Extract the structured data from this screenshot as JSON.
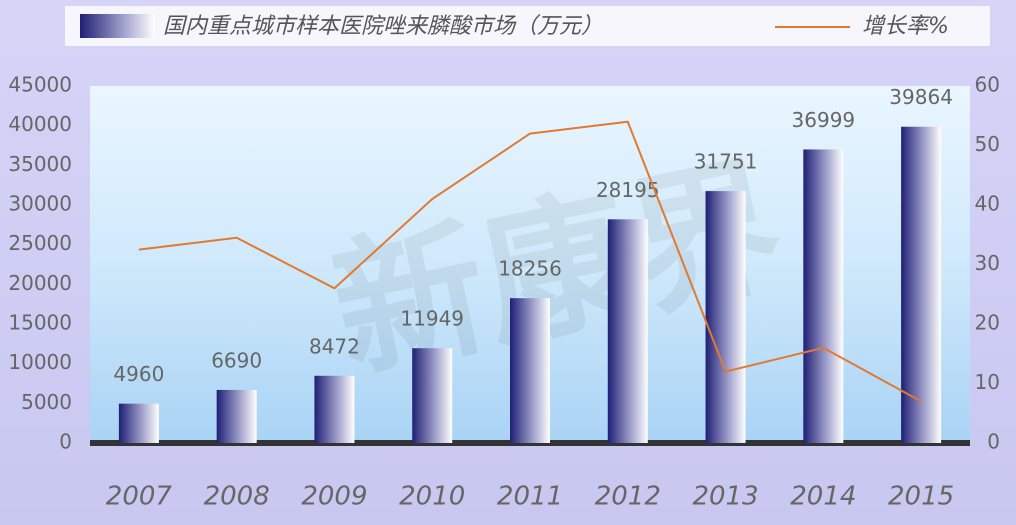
{
  "chart_data": {
    "type": "bar_line",
    "watermark": "新康界",
    "categories": [
      "2007",
      "2008",
      "2009",
      "2010",
      "2011",
      "2012",
      "2013",
      "2014",
      "2015"
    ],
    "series": [
      {
        "name": "国内重点城市样本医院唑来膦酸市场（万元）",
        "type": "bar",
        "color": "#1f1f75",
        "values": [
          4960,
          6690,
          8472,
          11949,
          18256,
          28195,
          31751,
          36999,
          39864
        ]
      },
      {
        "name": "增长率%",
        "type": "line",
        "axis": "y2",
        "color": "#e07a30",
        "values": [
          32.5,
          34.5,
          26,
          41,
          52,
          54,
          12,
          16,
          7
        ]
      }
    ],
    "ylim": [
      0,
      45000
    ],
    "yticks": [
      0,
      5000,
      10000,
      15000,
      20000,
      25000,
      30000,
      35000,
      40000,
      45000
    ],
    "y2lim": [
      0,
      60
    ],
    "y2ticks": [
      0,
      10,
      20,
      30,
      40,
      50,
      60
    ]
  }
}
